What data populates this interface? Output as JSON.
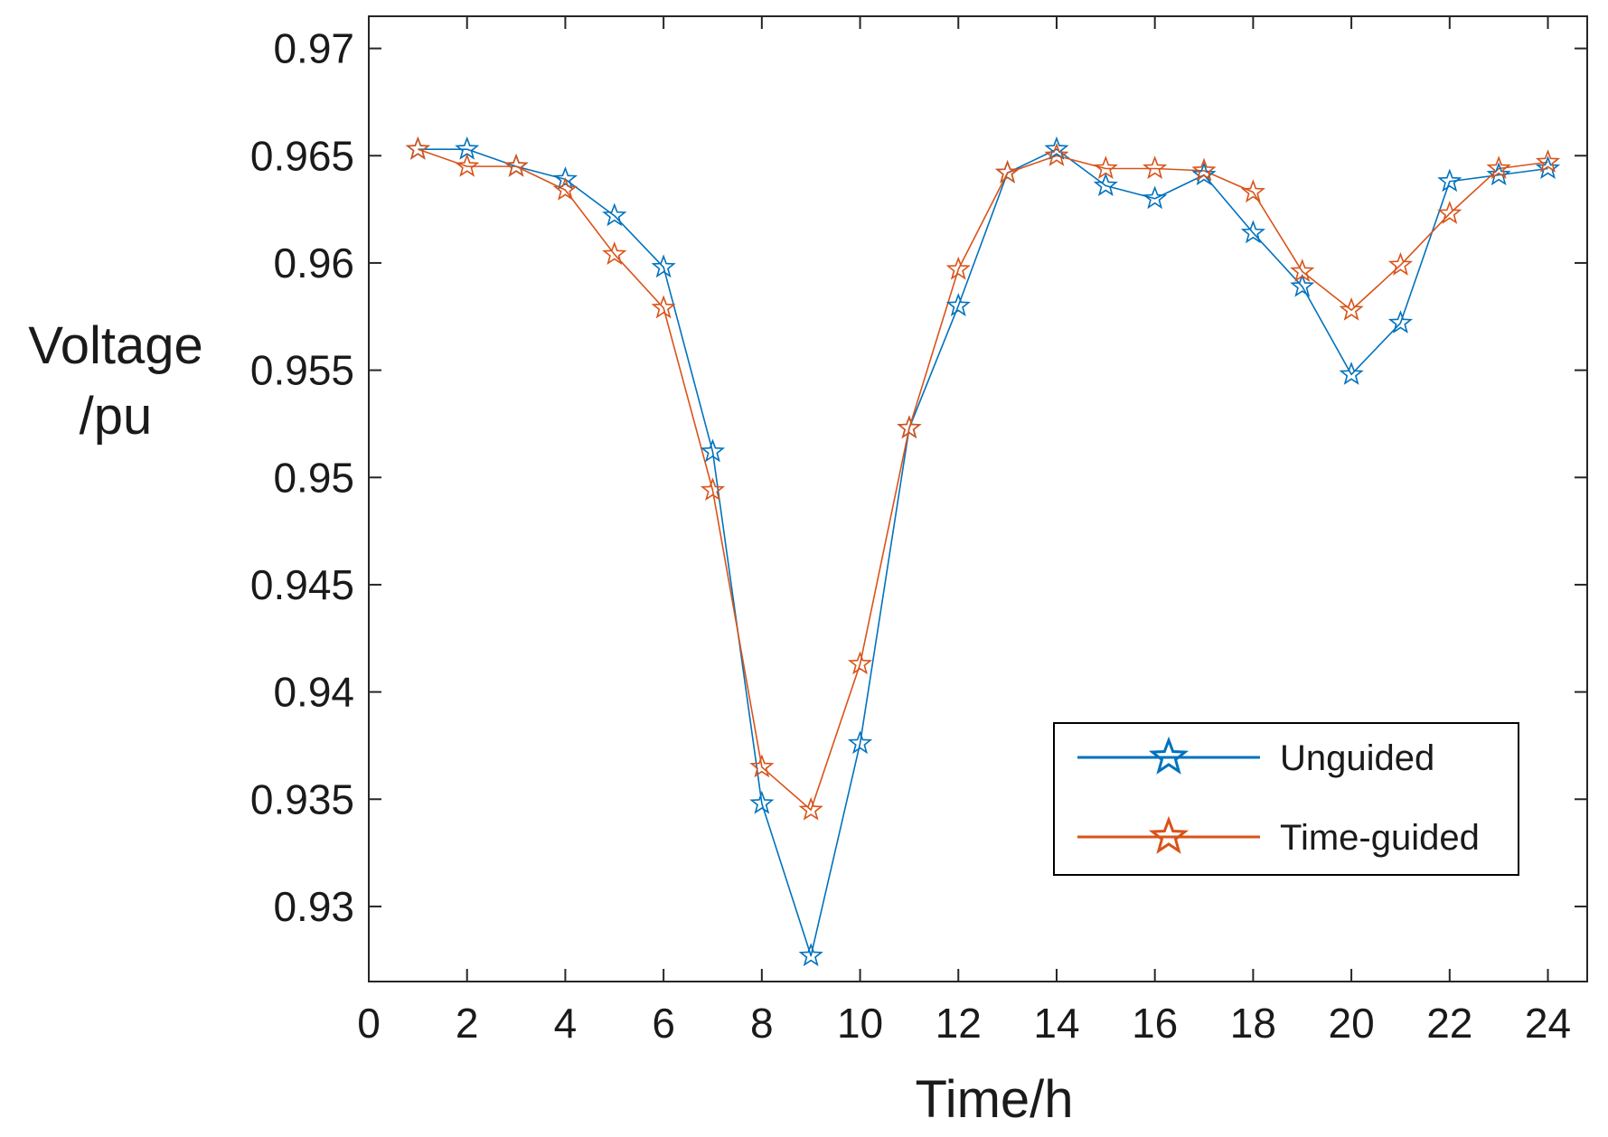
{
  "chart_data": {
    "type": "line",
    "title": "",
    "xlabel": "Time/h",
    "ylabel_lines": [
      "Voltage",
      "/pu"
    ],
    "xlim": [
      0,
      24.8
    ],
    "ylim": [
      0.9265,
      0.9715
    ],
    "xticks": [
      0,
      2,
      4,
      6,
      8,
      10,
      12,
      14,
      16,
      18,
      20,
      22,
      24
    ],
    "xtick_labels": [
      "0",
      "2",
      "4",
      "6",
      "8",
      "10",
      "12",
      "14",
      "16",
      "18",
      "20",
      "22",
      "24"
    ],
    "yticks": [
      0.93,
      0.935,
      0.94,
      0.945,
      0.95,
      0.955,
      0.96,
      0.965,
      0.97
    ],
    "ytick_labels": [
      "0.93",
      "0.935",
      "0.94",
      "0.945",
      "0.95",
      "0.955",
      "0.96",
      "0.965",
      "0.97"
    ],
    "grid": false,
    "legend_position": "bottom-right",
    "x": [
      1,
      2,
      3,
      4,
      5,
      6,
      7,
      8,
      9,
      10,
      11,
      12,
      13,
      14,
      15,
      16,
      17,
      18,
      19,
      20,
      21,
      22,
      23,
      24
    ],
    "series": [
      {
        "name": "Unguided",
        "color": "#0072BD",
        "marker": "star",
        "values": [
          0.9653,
          0.9653,
          0.9645,
          0.9639,
          0.9622,
          0.9598,
          0.9512,
          0.9348,
          0.9277,
          0.9376,
          0.9523,
          0.958,
          0.9642,
          0.9653,
          0.9636,
          0.963,
          0.9641,
          0.9614,
          0.9589,
          0.9548,
          0.9572,
          0.9638,
          0.9641,
          0.9644
        ]
      },
      {
        "name": "Time-guided",
        "color": "#D95319",
        "marker": "star",
        "values": [
          0.9653,
          0.9645,
          0.9645,
          0.9634,
          0.9604,
          0.9579,
          0.9494,
          0.9365,
          0.9345,
          0.9413,
          0.9523,
          0.9597,
          0.9642,
          0.965,
          0.9644,
          0.9644,
          0.9643,
          0.9633,
          0.9596,
          0.9578,
          0.9599,
          0.9623,
          0.9644,
          0.9647
        ]
      }
    ]
  }
}
